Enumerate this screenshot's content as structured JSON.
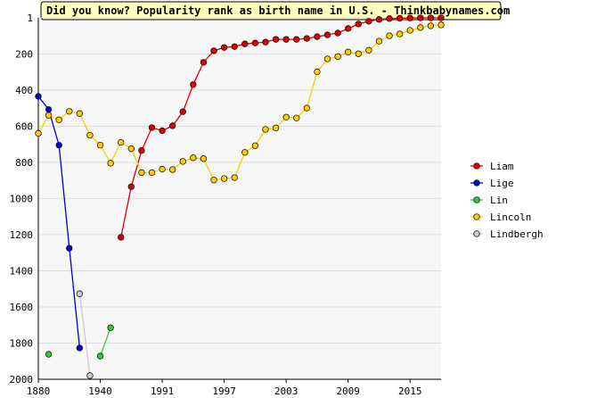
{
  "chart_data": {
    "type": "line",
    "title": "Did you know? Popularity rank as birth name in U.S. - Thinkbabynames.com",
    "categories": [
      "1880",
      null,
      null,
      null,
      null,
      null,
      "1940",
      null,
      null,
      null,
      null,
      null,
      "1991",
      null,
      null,
      null,
      null,
      null,
      "1997",
      null,
      null,
      null,
      null,
      null,
      "2003",
      null,
      null,
      null,
      null,
      null,
      "2009",
      null,
      null,
      null,
      null,
      null,
      "2015",
      null,
      null,
      null
    ],
    "ylim": [
      1,
      2000
    ],
    "y_inverted": true,
    "yticks": [
      1,
      200,
      400,
      600,
      800,
      1000,
      1200,
      1400,
      1600,
      1800,
      2000
    ],
    "grid": true,
    "legend": "right",
    "series": [
      {
        "name": "Liam",
        "color": "#dd0000",
        "values": [
          null,
          null,
          null,
          null,
          null,
          null,
          null,
          null,
          1215,
          935,
          735,
          608,
          625,
          598,
          520,
          370,
          247,
          183,
          165,
          160,
          145,
          140,
          135,
          120,
          120,
          120,
          115,
          105,
          95,
          85,
          60,
          35,
          20,
          10,
          5,
          3,
          2,
          1,
          1,
          1
        ]
      },
      {
        "name": "Lige",
        "color": "#0000cc",
        "values": [
          435,
          508,
          705,
          1275,
          1827,
          null,
          null,
          null,
          null,
          null,
          null,
          null,
          null,
          null,
          null,
          null,
          null,
          null,
          null,
          null,
          null,
          null,
          null,
          null,
          null,
          null,
          null,
          null,
          null,
          null,
          null,
          null,
          null,
          null,
          null,
          null,
          null,
          null,
          null,
          null
        ]
      },
      {
        "name": "Lin",
        "color": "#33cc33",
        "values": [
          null,
          1862,
          null,
          null,
          null,
          null,
          1872,
          1715,
          null,
          null,
          null,
          null,
          null,
          null,
          null,
          null,
          null,
          null,
          null,
          null,
          null,
          null,
          null,
          null,
          null,
          null,
          null,
          null,
          null,
          null,
          null,
          null,
          null,
          null,
          null,
          null,
          null,
          null,
          null,
          null
        ]
      },
      {
        "name": "Lincoln",
        "color": "#ffcc00",
        "values": [
          640,
          540,
          565,
          518,
          530,
          650,
          705,
          805,
          690,
          725,
          857,
          857,
          838,
          840,
          795,
          775,
          780,
          898,
          890,
          885,
          745,
          708,
          618,
          610,
          550,
          555,
          500,
          300,
          228,
          215,
          190,
          200,
          180,
          130,
          100,
          90,
          70,
          55,
          45,
          40
        ]
      },
      {
        "name": "Lindbergh",
        "color": "#cccccc",
        "values": [
          null,
          null,
          null,
          null,
          1527,
          1980,
          null,
          null,
          null,
          null,
          null,
          null,
          null,
          null,
          null,
          null,
          null,
          null,
          null,
          null,
          null,
          null,
          null,
          null,
          null,
          null,
          null,
          null,
          null,
          null,
          null,
          null,
          null,
          null,
          null,
          null,
          null,
          null,
          null,
          null
        ]
      }
    ]
  }
}
